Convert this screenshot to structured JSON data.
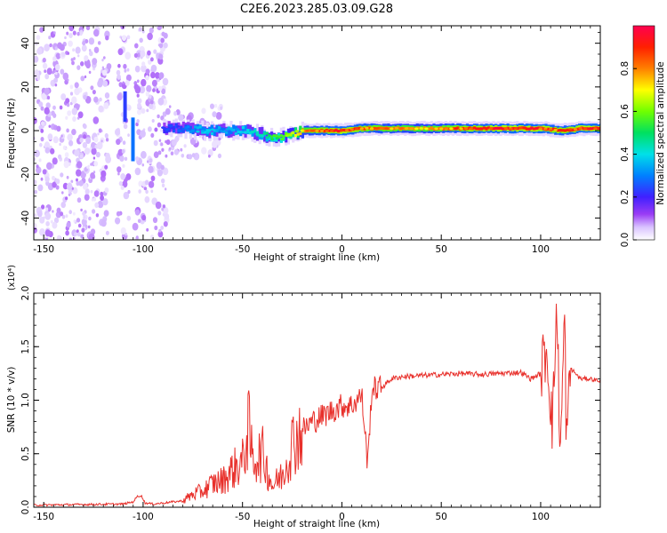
{
  "title": "C2E6.2023.285.03.09.G28",
  "chart_data": [
    {
      "type": "heatmap",
      "xlabel": "Height of straight line (km)",
      "ylabel": "Frequency (Hz)",
      "xlim": [
        -155,
        130
      ],
      "ylim": [
        -50,
        48
      ],
      "xticks": [
        "-150",
        "-100",
        "-50",
        "0",
        "50",
        "100"
      ],
      "yticks": [
        "-40",
        "-20",
        "0",
        "20",
        "40"
      ],
      "colorbar": {
        "label": "Normalized spectral amplitude",
        "range": [
          0,
          1
        ],
        "ticks": [
          "0.0",
          "0.2",
          "0.4",
          "0.6",
          "0.8"
        ],
        "colors": [
          "#ffffff",
          "#d9c2ff",
          "#9a3cf5",
          "#4020ff",
          "#0080ff",
          "#00e0e8",
          "#00e060",
          "#70ff00",
          "#ffff00",
          "#ff8000",
          "#ff2000",
          "#ff0050"
        ]
      },
      "ridge": {
        "x": [
          -90,
          -80,
          -70,
          -60,
          -50,
          -40,
          -35,
          -30,
          -20,
          -10,
          0,
          10,
          20,
          40,
          60,
          80,
          100,
          110,
          120,
          130
        ],
        "frequency": [
          1,
          1,
          0,
          0,
          0,
          -2,
          -3,
          -3,
          0,
          0,
          0,
          1,
          1,
          1,
          1,
          1,
          1,
          0,
          1,
          1
        ],
        "amplitude": [
          0.3,
          0.35,
          0.45,
          0.4,
          0.45,
          0.5,
          0.6,
          0.6,
          0.8,
          0.9,
          0.95,
          0.9,
          0.85,
          0.8,
          0.9,
          0.95,
          0.95,
          0.9,
          0.95,
          0.95
        ]
      }
    },
    {
      "type": "line",
      "xlabel": "Height of straight line (km)",
      "ylabel": "SNR (10 * v/v)",
      "y_multiplier": "(x10⁴)",
      "xlim": [
        -155,
        130
      ],
      "ylim": [
        0,
        2.0
      ],
      "xticks": [
        "-150",
        "-100",
        "-50",
        "0",
        "50",
        "100"
      ],
      "yticks": [
        "0.0",
        "0.5",
        "1.0",
        "1.5",
        "2.0"
      ],
      "color": "#e8302b",
      "series": [
        {
          "x": [
            -155,
            -110,
            -105,
            -103,
            -101,
            -99,
            -95,
            -90,
            -85,
            -80,
            -75,
            -70,
            -65,
            -60,
            -55,
            -50,
            -47,
            -45,
            -40,
            -35,
            -30,
            -25,
            -20,
            -15,
            -10,
            -5,
            0,
            5,
            10,
            13,
            15,
            20,
            25,
            30,
            40,
            50,
            60,
            70,
            80,
            90,
            95,
            100,
            103,
            106,
            108,
            110,
            112,
            113,
            115,
            120,
            125,
            130
          ],
          "y": [
            0.02,
            0.03,
            0.05,
            0.1,
            0.11,
            0.04,
            0.03,
            0.04,
            0.05,
            0.06,
            0.12,
            0.15,
            0.22,
            0.25,
            0.35,
            0.42,
            0.75,
            0.45,
            0.5,
            0.2,
            0.3,
            0.6,
            0.72,
            0.8,
            0.85,
            0.9,
            0.95,
            0.95,
            1.05,
            0.4,
            1.1,
            1.12,
            1.2,
            1.22,
            1.23,
            1.24,
            1.25,
            1.24,
            1.25,
            1.26,
            1.2,
            1.25,
            1.5,
            0.75,
            1.9,
            0.5,
            1.8,
            0.6,
            1.3,
            1.2,
            1.2,
            1.18
          ]
        }
      ]
    }
  ]
}
